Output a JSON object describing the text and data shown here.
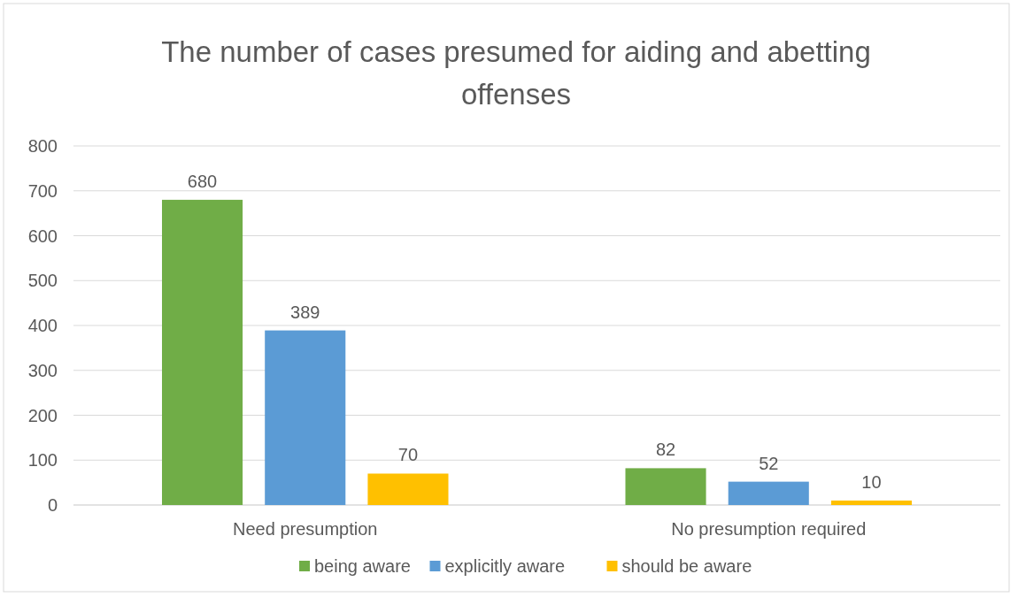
{
  "chart_data": {
    "type": "bar",
    "title": "The number of cases presumed for aiding and abetting offenses",
    "categories": [
      "Need presumption",
      "No presumption required"
    ],
    "series": [
      {
        "name": "being aware",
        "color": "#70ad47",
        "values": [
          680,
          82
        ]
      },
      {
        "name": "explicitly aware",
        "color": "#5b9bd5",
        "values": [
          389,
          52
        ]
      },
      {
        "name": "should be aware",
        "color": "#ffc000",
        "values": [
          70,
          10
        ]
      }
    ],
    "ylim": [
      0,
      800
    ],
    "yticks": [
      0,
      100,
      200,
      300,
      400,
      500,
      600,
      700,
      800
    ],
    "grid": "y",
    "legend": "bottom",
    "data_labels": true
  }
}
